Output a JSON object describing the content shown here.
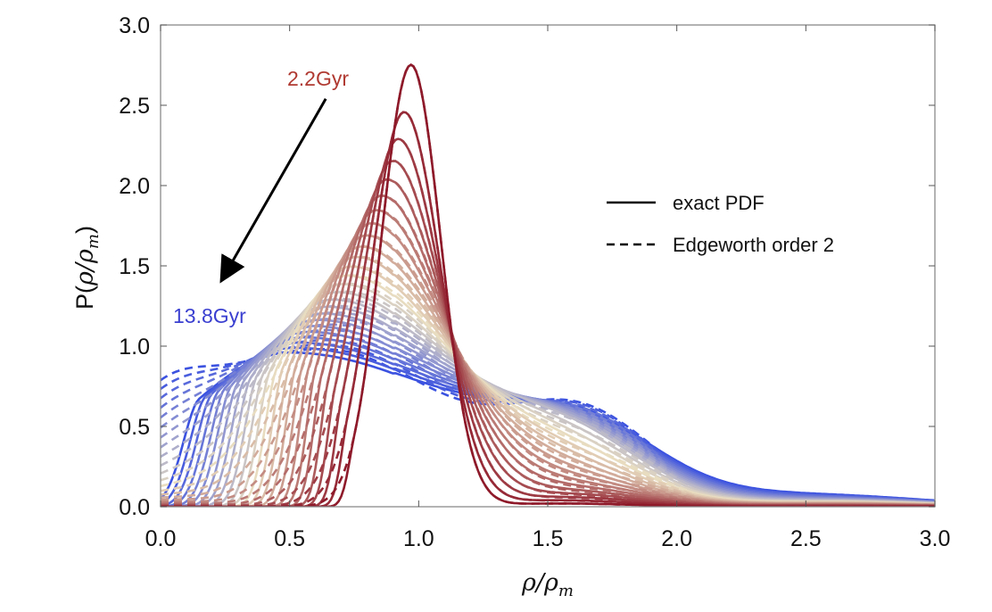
{
  "chart_data": {
    "type": "line",
    "xlabel": "ρ/ρm",
    "ylabel": "P(ρ/ρm)",
    "xlabel_parts": {
      "num": "ρ",
      "den": "ρ",
      "sub": "m"
    },
    "ylabel_parts": {
      "pre": "P(",
      "num": "ρ",
      "den": "ρ",
      "sub": "m",
      "post": ")"
    },
    "xlim": [
      0,
      3
    ],
    "ylim": [
      0,
      3
    ],
    "xticks": [
      "0.0",
      "0.5",
      "1.0",
      "1.5",
      "2.0",
      "2.5",
      "3.0"
    ],
    "yticks": [
      "0.0",
      "0.5",
      "1.0",
      "1.5",
      "2.0",
      "2.5",
      "3.0"
    ],
    "grid": false,
    "legend": {
      "placement": "right",
      "entries": [
        {
          "label": "exact PDF",
          "style": "solid"
        },
        {
          "label": "Edgeworth order 2",
          "style": "dashed"
        }
      ]
    },
    "annotations": [
      {
        "text": "2.2Gyr",
        "color": "#b03a32"
      },
      {
        "text": "13.8Gyr",
        "color": "#3a3fd0"
      }
    ],
    "arrow": {
      "from": [
        0.64,
        2.54
      ],
      "to": [
        0.24,
        1.42
      ]
    },
    "series_count": 25,
    "colormap": {
      "start": "#8e1a2a",
      "middle": "#e8dcc0",
      "end": "#3b52e0"
    },
    "peaks": {
      "first": {
        "x": 0.97,
        "y": 2.75
      },
      "last": {
        "x": 0.5,
        "y": 0.96
      }
    }
  }
}
